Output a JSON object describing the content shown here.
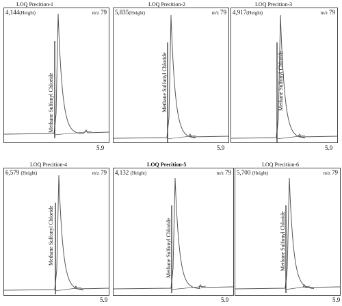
{
  "chart_data": [
    {
      "type": "line",
      "title": "LOQ Precition-1",
      "peak_height": "4,144",
      "height_label": "(Height)",
      "mz_label": "m/z",
      "mz_value": "79",
      "compound": "Methane Sulfonyl Chloride",
      "x_tick": "5.9"
    },
    {
      "type": "line",
      "title": "LOQ Precition-2",
      "peak_height": "5,835",
      "height_label": "(Height)",
      "mz_label": "m/z",
      "mz_value": "79",
      "compound": "Methane Sulfonyl Chloride",
      "x_tick": "5.9"
    },
    {
      "type": "line",
      "title": "LOQ Precition-3",
      "peak_height": "4,917",
      "height_label": "(Height)",
      "mz_label": "m/z",
      "mz_value": "79",
      "compound": "Methane Sulfonyl Chloride",
      "x_tick": "5.9"
    },
    {
      "type": "line",
      "title": "LOQ Precition-4",
      "peak_height": "6,579",
      "height_label": "(Height)",
      "mz_label": "m/z",
      "mz_value": "79",
      "compound": "Methane Sulfonyl Chloride",
      "x_tick": "5.9"
    },
    {
      "type": "line",
      "title": "LOQ Precition-5",
      "peak_height": "4,132",
      "height_label": "(Height)",
      "mz_label": "m/z",
      "mz_value": "79",
      "compound": "Methane Sulfonyl Chloride",
      "x_tick": "5.9"
    },
    {
      "type": "line",
      "title": "LOQ Precition-6",
      "peak_height": "5,700",
      "height_label": "(Height)",
      "mz_label": "m/z",
      "mz_value": "79",
      "compound": "Methane Sulfonyl Chloride",
      "x_tick": "5.9"
    }
  ],
  "colors": {
    "trace": "#555555",
    "frame": "#444444",
    "marker": "#222222"
  }
}
